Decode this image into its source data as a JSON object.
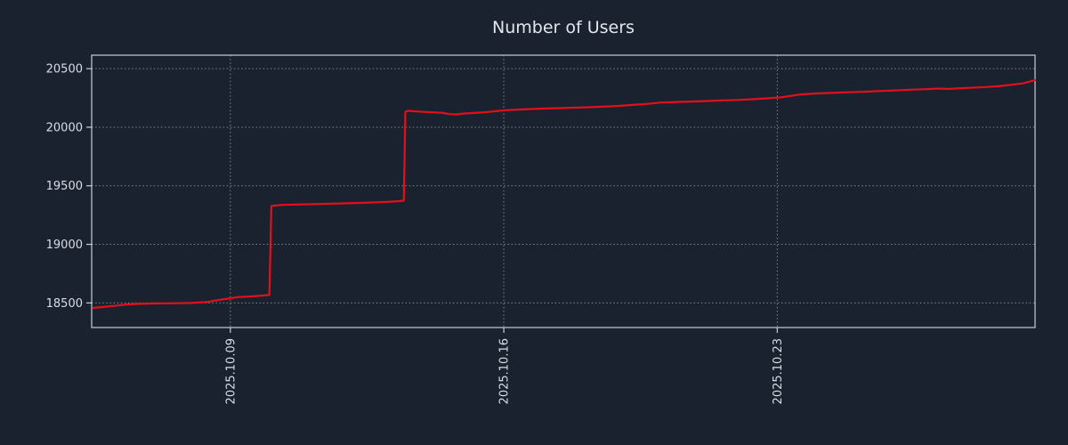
{
  "chart_data": {
    "type": "line",
    "title": "Number of Users",
    "xlabel": "",
    "ylabel": "",
    "background_color": "#1a2230",
    "text_color": "#d9dde4",
    "grid_color": "#ffffff",
    "axis_color": "#c9ced6",
    "grid_on": true,
    "legend": "none",
    "x_ticks": [
      {
        "label": "2025.10.09",
        "day": 9
      },
      {
        "label": "2025.10.16",
        "day": 16
      },
      {
        "label": "2025.10.23",
        "day": 23
      }
    ],
    "y_ticks": [
      18500,
      19000,
      19500,
      20000,
      20500
    ],
    "x_range": [
      5.45,
      29.6
    ],
    "y_range": [
      18290,
      20615
    ],
    "series": [
      {
        "name": "users",
        "color": "#e3101c",
        "points": [
          [
            5.48,
            18457
          ],
          [
            5.8,
            18468
          ],
          [
            6.1,
            18478
          ],
          [
            6.4,
            18488
          ],
          [
            6.7,
            18492
          ],
          [
            7.0,
            18495
          ],
          [
            7.5,
            18497
          ],
          [
            8.0,
            18500
          ],
          [
            8.4,
            18508
          ],
          [
            8.7,
            18525
          ],
          [
            9.0,
            18540
          ],
          [
            9.2,
            18550
          ],
          [
            9.5,
            18555
          ],
          [
            9.8,
            18562
          ],
          [
            10.0,
            18568
          ],
          [
            10.05,
            19328
          ],
          [
            10.3,
            19336
          ],
          [
            10.7,
            19340
          ],
          [
            11.1,
            19343
          ],
          [
            11.5,
            19346
          ],
          [
            11.9,
            19350
          ],
          [
            12.3,
            19354
          ],
          [
            12.7,
            19358
          ],
          [
            13.1,
            19364
          ],
          [
            13.35,
            19370
          ],
          [
            13.44,
            19374
          ],
          [
            13.48,
            20132
          ],
          [
            13.55,
            20140
          ],
          [
            13.8,
            20134
          ],
          [
            14.0,
            20130
          ],
          [
            14.2,
            20127
          ],
          [
            14.45,
            20122
          ],
          [
            14.6,
            20112
          ],
          [
            14.8,
            20110
          ],
          [
            15.0,
            20117
          ],
          [
            15.2,
            20121
          ],
          [
            15.5,
            20128
          ],
          [
            15.8,
            20137
          ],
          [
            16.1,
            20146
          ],
          [
            16.5,
            20152
          ],
          [
            16.9,
            20158
          ],
          [
            17.3,
            20162
          ],
          [
            17.7,
            20166
          ],
          [
            18.1,
            20170
          ],
          [
            18.5,
            20175
          ],
          [
            18.9,
            20181
          ],
          [
            19.3,
            20190
          ],
          [
            19.7,
            20200
          ],
          [
            20.0,
            20210
          ],
          [
            20.4,
            20215
          ],
          [
            20.8,
            20219
          ],
          [
            21.2,
            20224
          ],
          [
            21.6,
            20229
          ],
          [
            22.0,
            20233
          ],
          [
            22.4,
            20240
          ],
          [
            22.8,
            20248
          ],
          [
            23.1,
            20255
          ],
          [
            23.4,
            20270
          ],
          [
            23.6,
            20280
          ],
          [
            24.0,
            20288
          ],
          [
            24.4,
            20293
          ],
          [
            24.8,
            20298
          ],
          [
            25.2,
            20303
          ],
          [
            25.6,
            20309
          ],
          [
            26.0,
            20314
          ],
          [
            26.4,
            20320
          ],
          [
            26.8,
            20325
          ],
          [
            27.1,
            20330
          ],
          [
            27.4,
            20327
          ],
          [
            27.7,
            20333
          ],
          [
            28.1,
            20339
          ],
          [
            28.4,
            20344
          ],
          [
            28.7,
            20352
          ],
          [
            29.0,
            20363
          ],
          [
            29.3,
            20375
          ],
          [
            29.6,
            20402
          ]
        ]
      }
    ]
  }
}
